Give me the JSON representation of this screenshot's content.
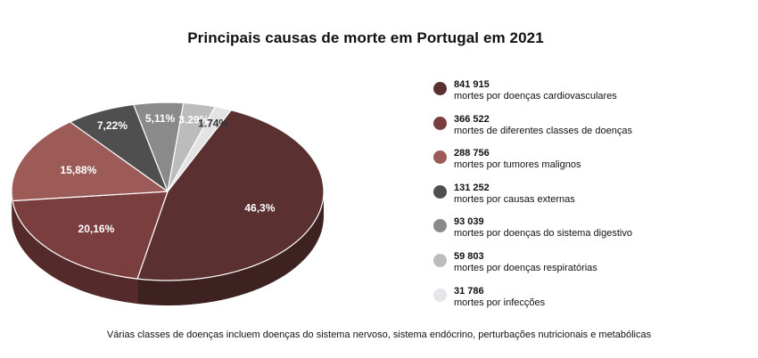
{
  "chart_data": {
    "type": "pie",
    "title": "Principais causas de morte em Portugal em 2021",
    "slices": [
      {
        "value_label": "841 915",
        "label": "mortes por doenças cardiovasculares",
        "percent_label": "46,3%",
        "percent": 46.3,
        "color": "#5a3030",
        "side": "#3e2121",
        "text_color": "#ffffff"
      },
      {
        "value_label": "366 522",
        "label": "mortes de diferentes classes de doenças",
        "percent_label": "20,16%",
        "percent": 20.16,
        "color": "#7a3e3e",
        "side": "#552a2a",
        "text_color": "#ffffff"
      },
      {
        "value_label": "288 756",
        "label": "mortes por tumores malignos",
        "percent_label": "15,88%",
        "percent": 15.88,
        "color": "#9d5b58",
        "side": "#6f3f3d",
        "text_color": "#ffffff"
      },
      {
        "value_label": "131 252",
        "label": "mortes por causas externas",
        "percent_label": "7,22%",
        "percent": 7.22,
        "color": "#4f4f4f",
        "side": "#383838",
        "text_color": "#ffffff"
      },
      {
        "value_label": "93 039",
        "label": "mortes por doenças do sistema digestivo",
        "percent_label": "5,11%",
        "percent": 5.11,
        "color": "#8a8a8a",
        "side": "#666666",
        "text_color": "#ffffff"
      },
      {
        "value_label": "59 803",
        "label": "mortes por doenças respiratórias",
        "percent_label": "3.29%",
        "percent": 3.29,
        "color": "#bcbcbc",
        "side": "#999999",
        "text_color": "#ffffff"
      },
      {
        "value_label": "31 786",
        "label": "mortes por infecções",
        "percent_label": "1.74%",
        "percent": 1.74,
        "color": "#e3e3e6",
        "side": "#c4c4c8",
        "text_color": "#333333"
      }
    ],
    "footnote": "Várias classes de doenças incluem doenças do sistema nervoso, sistema endócrino, perturbações nutricionais e metabólicas"
  }
}
